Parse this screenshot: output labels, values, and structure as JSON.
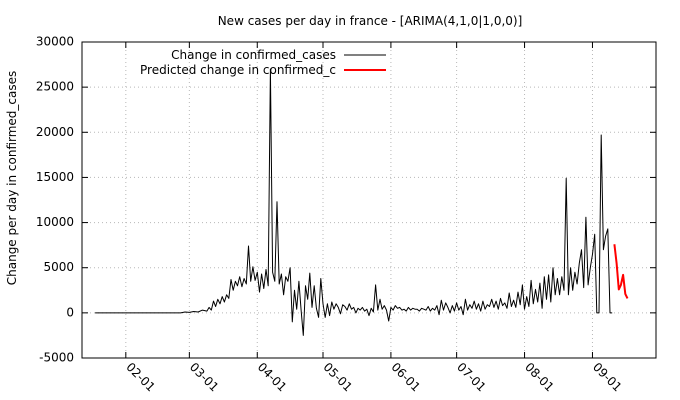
{
  "chart_data": {
    "type": "line",
    "title": "New cases per day in france -  [ARIMA(4,1,0|1,0,0)]",
    "xlabel": "",
    "ylabel": "Change per day in confirmed_cases",
    "ylim": [
      -5000,
      30000
    ],
    "yticks": [
      -5000,
      0,
      5000,
      10000,
      15000,
      20000,
      25000,
      30000
    ],
    "xlim": [
      "2020-01-12",
      "2020-09-30"
    ],
    "xticks": [
      {
        "date": "2020-02-01",
        "label": "02-01"
      },
      {
        "date": "2020-03-01",
        "label": "03-01"
      },
      {
        "date": "2020-04-01",
        "label": "04-01"
      },
      {
        "date": "2020-05-01",
        "label": "05-01"
      },
      {
        "date": "2020-06-01",
        "label": "06-01"
      },
      {
        "date": "2020-07-01",
        "label": "07-01"
      },
      {
        "date": "2020-08-01",
        "label": "08-01"
      },
      {
        "date": "2020-09-01",
        "label": "09-01"
      }
    ],
    "grid": true,
    "legend_position": "top-left",
    "series": [
      {
        "name": "Change in confirmed_cases",
        "color": "#000000",
        "points": [
          [
            "2020-01-18",
            0
          ],
          [
            "2020-01-28",
            0
          ],
          [
            "2020-02-07",
            0
          ],
          [
            "2020-02-17",
            0
          ],
          [
            "2020-02-26",
            0
          ],
          [
            "2020-02-28",
            100
          ],
          [
            "2020-03-01",
            50
          ],
          [
            "2020-03-03",
            150
          ],
          [
            "2020-03-05",
            100
          ],
          [
            "2020-03-07",
            300
          ],
          [
            "2020-03-09",
            200
          ],
          [
            "2020-03-10",
            600
          ],
          [
            "2020-03-11",
            300
          ],
          [
            "2020-03-12",
            1300
          ],
          [
            "2020-03-13",
            700
          ],
          [
            "2020-03-14",
            1500
          ],
          [
            "2020-03-15",
            1000
          ],
          [
            "2020-03-16",
            1800
          ],
          [
            "2020-03-17",
            1200
          ],
          [
            "2020-03-18",
            2000
          ],
          [
            "2020-03-19",
            1600
          ],
          [
            "2020-03-20",
            3700
          ],
          [
            "2020-03-21",
            2500
          ],
          [
            "2020-03-22",
            3500
          ],
          [
            "2020-03-23",
            3000
          ],
          [
            "2020-03-24",
            4000
          ],
          [
            "2020-03-25",
            2900
          ],
          [
            "2020-03-26",
            3800
          ],
          [
            "2020-03-27",
            3200
          ],
          [
            "2020-03-28",
            7400
          ],
          [
            "2020-03-29",
            3500
          ],
          [
            "2020-03-30",
            5100
          ],
          [
            "2020-03-31",
            3600
          ],
          [
            "2020-04-01",
            4500
          ],
          [
            "2020-04-02",
            2300
          ],
          [
            "2020-04-03",
            4300
          ],
          [
            "2020-04-04",
            2700
          ],
          [
            "2020-04-05",
            4800
          ],
          [
            "2020-04-06",
            3000
          ],
          [
            "2020-04-07",
            27000
          ],
          [
            "2020-04-08",
            4500
          ],
          [
            "2020-04-09",
            3500
          ],
          [
            "2020-04-10",
            12300
          ],
          [
            "2020-04-11",
            3200
          ],
          [
            "2020-04-12",
            4300
          ],
          [
            "2020-04-13",
            2000
          ],
          [
            "2020-04-14",
            4000
          ],
          [
            "2020-04-15",
            3500
          ],
          [
            "2020-04-16",
            5000
          ],
          [
            "2020-04-17",
            -1000
          ],
          [
            "2020-04-18",
            2500
          ],
          [
            "2020-04-19",
            400
          ],
          [
            "2020-04-20",
            3500
          ],
          [
            "2020-04-21",
            300
          ],
          [
            "2020-04-22",
            -2500
          ],
          [
            "2020-04-23",
            3000
          ],
          [
            "2020-04-24",
            1500
          ],
          [
            "2020-04-25",
            4400
          ],
          [
            "2020-04-26",
            600
          ],
          [
            "2020-04-27",
            3000
          ],
          [
            "2020-04-28",
            500
          ],
          [
            "2020-04-29",
            -500
          ],
          [
            "2020-04-30",
            3800
          ],
          [
            "2020-05-01",
            1000
          ],
          [
            "2020-05-02",
            -500
          ],
          [
            "2020-05-03",
            1000
          ],
          [
            "2020-05-04",
            -300
          ],
          [
            "2020-05-05",
            1200
          ],
          [
            "2020-05-06",
            400
          ],
          [
            "2020-05-07",
            1000
          ],
          [
            "2020-05-08",
            600
          ],
          [
            "2020-05-09",
            -100
          ],
          [
            "2020-05-10",
            900
          ],
          [
            "2020-05-11",
            700
          ],
          [
            "2020-05-12",
            300
          ],
          [
            "2020-05-13",
            1000
          ],
          [
            "2020-05-14",
            400
          ],
          [
            "2020-05-15",
            600
          ],
          [
            "2020-05-16",
            0
          ],
          [
            "2020-05-17",
            500
          ],
          [
            "2020-05-18",
            300
          ],
          [
            "2020-05-19",
            600
          ],
          [
            "2020-05-20",
            200
          ],
          [
            "2020-05-21",
            400
          ],
          [
            "2020-05-22",
            -300
          ],
          [
            "2020-05-23",
            500
          ],
          [
            "2020-05-24",
            100
          ],
          [
            "2020-05-25",
            3100
          ],
          [
            "2020-05-26",
            300
          ],
          [
            "2020-05-27",
            1500
          ],
          [
            "2020-05-28",
            400
          ],
          [
            "2020-05-29",
            800
          ],
          [
            "2020-05-30",
            300
          ],
          [
            "2020-05-31",
            -900
          ],
          [
            "2020-06-01",
            600
          ],
          [
            "2020-06-02",
            300
          ],
          [
            "2020-06-03",
            800
          ],
          [
            "2020-06-04",
            500
          ],
          [
            "2020-06-05",
            600
          ],
          [
            "2020-06-06",
            300
          ],
          [
            "2020-06-07",
            400
          ],
          [
            "2020-06-08",
            200
          ],
          [
            "2020-06-09",
            600
          ],
          [
            "2020-06-10",
            300
          ],
          [
            "2020-06-11",
            500
          ],
          [
            "2020-06-12",
            400
          ],
          [
            "2020-06-13",
            400
          ],
          [
            "2020-06-14",
            200
          ],
          [
            "2020-06-15",
            500
          ],
          [
            "2020-06-16",
            400
          ],
          [
            "2020-06-17",
            300
          ],
          [
            "2020-06-18",
            700
          ],
          [
            "2020-06-19",
            200
          ],
          [
            "2020-06-20",
            500
          ],
          [
            "2020-06-21",
            300
          ],
          [
            "2020-06-22",
            800
          ],
          [
            "2020-06-23",
            -200
          ],
          [
            "2020-06-24",
            1400
          ],
          [
            "2020-06-25",
            300
          ],
          [
            "2020-06-26",
            1100
          ],
          [
            "2020-06-27",
            600
          ],
          [
            "2020-06-28",
            0
          ],
          [
            "2020-06-29",
            800
          ],
          [
            "2020-06-30",
            200
          ],
          [
            "2020-07-01",
            1100
          ],
          [
            "2020-07-02",
            300
          ],
          [
            "2020-07-03",
            700
          ],
          [
            "2020-07-04",
            -200
          ],
          [
            "2020-07-05",
            1500
          ],
          [
            "2020-07-06",
            300
          ],
          [
            "2020-07-07",
            900
          ],
          [
            "2020-07-08",
            500
          ],
          [
            "2020-07-09",
            1300
          ],
          [
            "2020-07-10",
            400
          ],
          [
            "2020-07-11",
            1000
          ],
          [
            "2020-07-12",
            200
          ],
          [
            "2020-07-13",
            1300
          ],
          [
            "2020-07-14",
            400
          ],
          [
            "2020-07-15",
            900
          ],
          [
            "2020-07-16",
            700
          ],
          [
            "2020-07-17",
            1500
          ],
          [
            "2020-07-18",
            600
          ],
          [
            "2020-07-19",
            1300
          ],
          [
            "2020-07-20",
            400
          ],
          [
            "2020-07-21",
            1600
          ],
          [
            "2020-07-22",
            800
          ],
          [
            "2020-07-23",
            1100
          ],
          [
            "2020-07-24",
            500
          ],
          [
            "2020-07-25",
            2200
          ],
          [
            "2020-07-26",
            700
          ],
          [
            "2020-07-27",
            1400
          ],
          [
            "2020-07-28",
            600
          ],
          [
            "2020-07-29",
            2300
          ],
          [
            "2020-07-30",
            900
          ],
          [
            "2020-07-31",
            3100
          ],
          [
            "2020-08-01",
            400
          ],
          [
            "2020-08-02",
            1800
          ],
          [
            "2020-08-03",
            700
          ],
          [
            "2020-08-04",
            3600
          ],
          [
            "2020-08-05",
            1000
          ],
          [
            "2020-08-06",
            2600
          ],
          [
            "2020-08-07",
            1200
          ],
          [
            "2020-08-08",
            3300
          ],
          [
            "2020-08-09",
            500
          ],
          [
            "2020-08-10",
            4000
          ],
          [
            "2020-08-11",
            1500
          ],
          [
            "2020-08-12",
            4200
          ],
          [
            "2020-08-13",
            1200
          ],
          [
            "2020-08-14",
            5000
          ],
          [
            "2020-08-15",
            2000
          ],
          [
            "2020-08-16",
            3800
          ],
          [
            "2020-08-17",
            2000
          ],
          [
            "2020-08-18",
            4000
          ],
          [
            "2020-08-19",
            2500
          ],
          [
            "2020-08-20",
            14900
          ],
          [
            "2020-08-21",
            2000
          ],
          [
            "2020-08-22",
            5000
          ],
          [
            "2020-08-23",
            2500
          ],
          [
            "2020-08-24",
            4500
          ],
          [
            "2020-08-25",
            3200
          ],
          [
            "2020-08-26",
            5500
          ],
          [
            "2020-08-27",
            7000
          ],
          [
            "2020-08-28",
            2800
          ],
          [
            "2020-08-29",
            10600
          ],
          [
            "2020-08-30",
            3100
          ],
          [
            "2020-08-31",
            5000
          ],
          [
            "2020-09-01",
            6500
          ],
          [
            "2020-09-02",
            8700
          ],
          [
            "2020-09-03",
            0
          ],
          [
            "2020-09-04",
            0
          ],
          [
            "2020-09-05",
            19700
          ],
          [
            "2020-09-06",
            7000
          ],
          [
            "2020-09-07",
            8500
          ],
          [
            "2020-09-08",
            9300
          ],
          [
            "2020-09-09",
            0
          ],
          [
            "2020-09-10",
            0
          ]
        ]
      },
      {
        "name": "Predicted change in confirmed_c",
        "color": "#ff0000",
        "points": [
          [
            "2020-09-11",
            7600
          ],
          [
            "2020-09-12",
            5500
          ],
          [
            "2020-09-13",
            2600
          ],
          [
            "2020-09-14",
            3100
          ],
          [
            "2020-09-15",
            4200
          ],
          [
            "2020-09-16",
            2100
          ],
          [
            "2020-09-17",
            1600
          ]
        ]
      }
    ]
  }
}
